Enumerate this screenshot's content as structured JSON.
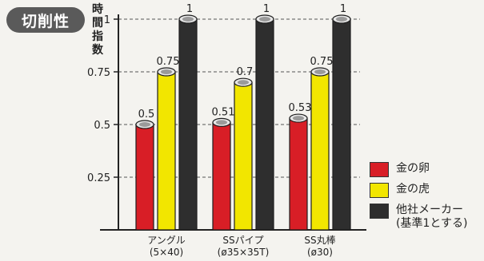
{
  "badge": "切削性",
  "chart_data": {
    "type": "bar",
    "ylabel": "時間指数",
    "categories": [
      {
        "name": "アングル",
        "sub": "(5×40)"
      },
      {
        "name": "SSパイプ",
        "sub": "(ø35×35T)"
      },
      {
        "name": "SS丸棒",
        "sub": "(ø30)"
      }
    ],
    "series": [
      {
        "name": "金の卵",
        "color": "#d81e26",
        "values": [
          0.5,
          0.51,
          0.53
        ],
        "labels": [
          "0.5",
          "0.51",
          "0.53"
        ]
      },
      {
        "name": "金の虎",
        "color": "#f2e600",
        "values": [
          0.75,
          0.7,
          0.75
        ],
        "labels": [
          "0.75",
          "0.7",
          "0.75"
        ]
      },
      {
        "name": "他社メーカー",
        "name2": "(基準1とする)",
        "color": "#2e2e2e",
        "values": [
          1,
          1,
          1
        ],
        "labels": [
          "1",
          "1",
          "1"
        ]
      }
    ],
    "yticks": [
      "0.25",
      "0.5",
      "0.75",
      "1"
    ],
    "ylim": [
      0,
      1
    ],
    "grid": true,
    "legend": "right"
  }
}
